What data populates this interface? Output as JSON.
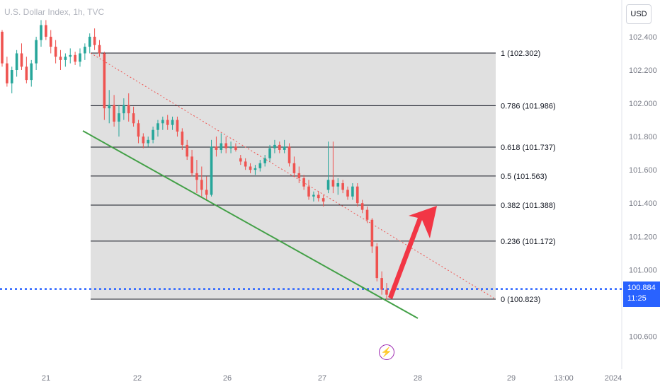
{
  "header": {
    "symbol": "U.S. Dollar Index, 1h, TVC",
    "currency_button": "USD"
  },
  "price_tag": {
    "price": "100.884",
    "countdown": "11:25",
    "color": "#2962ff"
  },
  "event_icon": {
    "icon": "lightning-bolt-icon",
    "glyph": "⚡",
    "color": "#9c27b0"
  },
  "colors": {
    "up": "#26a69a",
    "down": "#ef5350",
    "fib_fill": "#e0e0e0",
    "trendline": "#4caf50",
    "arrow": "#f23645"
  },
  "chart_data": {
    "type": "candlestick",
    "y_axis": {
      "range": [
        100.46,
        102.52
      ],
      "ticks": [
        "102.400",
        "102.200",
        "102.000",
        "101.800",
        "101.600",
        "101.400",
        "101.200",
        "101.000",
        "100.800",
        "100.600"
      ]
    },
    "x_axis": {
      "ticks": [
        "21",
        "22",
        "26",
        "27",
        "28",
        "29",
        "13:00",
        "2024"
      ]
    },
    "fibonacci": [
      {
        "ratio": "1",
        "price": 102.302,
        "label": "1 (102.302)"
      },
      {
        "ratio": "0.786",
        "price": 101.986,
        "label": "0.786 (101.986)"
      },
      {
        "ratio": "0.618",
        "price": 101.737,
        "label": "0.618 (101.737)"
      },
      {
        "ratio": "0.5",
        "price": 101.563,
        "label": "0.5 (101.563)"
      },
      {
        "ratio": "0.382",
        "price": 101.388,
        "label": "0.382 (101.388)"
      },
      {
        "ratio": "0.236",
        "price": 101.172,
        "label": "0.236 (101.172)"
      },
      {
        "ratio": "0",
        "price": 100.823,
        "label": "0 (100.823)"
      }
    ],
    "current_price": 100.884,
    "candles": [
      [
        102.43,
        102.44,
        102.22,
        102.24
      ],
      [
        102.24,
        102.28,
        102.1,
        102.12
      ],
      [
        102.12,
        102.22,
        102.06,
        102.2
      ],
      [
        102.2,
        102.32,
        102.16,
        102.3
      ],
      [
        102.3,
        102.36,
        102.2,
        102.22
      ],
      [
        102.22,
        102.28,
        102.12,
        102.14
      ],
      [
        102.14,
        102.26,
        102.1,
        102.24
      ],
      [
        102.24,
        102.4,
        102.2,
        102.38
      ],
      [
        102.38,
        102.5,
        102.34,
        102.47
      ],
      [
        102.47,
        102.5,
        102.38,
        102.4
      ],
      [
        102.4,
        102.44,
        102.3,
        102.34
      ],
      [
        102.34,
        102.38,
        102.24,
        102.28
      ],
      [
        102.28,
        102.32,
        102.2,
        102.26
      ],
      [
        102.26,
        102.3,
        102.22,
        102.28
      ],
      [
        102.28,
        102.33,
        102.24,
        102.29
      ],
      [
        102.29,
        102.31,
        102.23,
        102.25
      ],
      [
        102.25,
        102.33,
        102.22,
        102.3
      ],
      [
        102.3,
        102.36,
        102.26,
        102.34
      ],
      [
        102.34,
        102.42,
        102.3,
        102.4
      ],
      [
        102.4,
        102.45,
        102.32,
        102.35
      ],
      [
        102.35,
        102.38,
        102.28,
        102.3
      ],
      [
        102.3,
        102.31,
        101.9,
        101.97
      ],
      [
        101.97,
        102.08,
        101.88,
        101.99
      ],
      [
        101.99,
        102.05,
        101.86,
        101.89
      ],
      [
        101.89,
        101.99,
        101.8,
        101.94
      ],
      [
        101.94,
        102.03,
        101.9,
        101.99
      ],
      [
        101.99,
        102.06,
        101.89,
        101.94
      ],
      [
        101.94,
        101.98,
        101.86,
        101.88
      ],
      [
        101.88,
        101.9,
        101.76,
        101.8
      ],
      [
        101.8,
        101.82,
        101.73,
        101.76
      ],
      [
        101.76,
        101.8,
        101.74,
        101.78
      ],
      [
        101.78,
        101.86,
        101.76,
        101.84
      ],
      [
        101.84,
        101.9,
        101.8,
        101.88
      ],
      [
        101.88,
        101.92,
        101.84,
        101.9
      ],
      [
        101.9,
        101.93,
        101.84,
        101.87
      ],
      [
        101.87,
        101.92,
        101.84,
        101.9
      ],
      [
        101.9,
        101.92,
        101.8,
        101.83
      ],
      [
        101.83,
        101.85,
        101.72,
        101.75
      ],
      [
        101.75,
        101.78,
        101.66,
        101.68
      ],
      [
        101.68,
        101.72,
        101.56,
        101.58
      ],
      [
        101.58,
        101.66,
        101.46,
        101.54
      ],
      [
        101.54,
        101.62,
        101.44,
        101.48
      ],
      [
        101.48,
        101.56,
        101.42,
        101.45
      ],
      [
        101.45,
        101.78,
        101.44,
        101.74
      ],
      [
        101.74,
        101.8,
        101.68,
        101.72
      ],
      [
        101.72,
        101.82,
        101.7,
        101.76
      ],
      [
        101.76,
        101.8,
        101.7,
        101.73
      ],
      [
        101.73,
        101.77,
        101.7,
        101.74
      ],
      [
        101.74,
        101.76,
        101.71,
        101.72
      ],
      [
        101.67,
        101.69,
        101.63,
        101.65
      ],
      [
        101.65,
        101.67,
        101.6,
        101.62
      ],
      [
        101.62,
        101.64,
        101.58,
        101.6
      ],
      [
        101.6,
        101.63,
        101.57,
        101.61
      ],
      [
        101.61,
        101.66,
        101.59,
        101.64
      ],
      [
        101.64,
        101.69,
        101.62,
        101.67
      ],
      [
        101.67,
        101.75,
        101.65,
        101.73
      ],
      [
        101.73,
        101.78,
        101.7,
        101.75
      ],
      [
        101.75,
        101.77,
        101.7,
        101.72
      ],
      [
        101.72,
        101.78,
        101.7,
        101.74
      ],
      [
        101.74,
        101.76,
        101.62,
        101.64
      ],
      [
        101.64,
        101.68,
        101.56,
        101.58
      ],
      [
        101.58,
        101.62,
        101.52,
        101.55
      ],
      [
        101.55,
        101.57,
        101.48,
        101.5
      ],
      [
        101.5,
        101.54,
        101.42,
        101.44
      ],
      [
        101.44,
        101.47,
        101.41,
        101.45
      ],
      [
        101.45,
        101.47,
        101.41,
        101.43
      ],
      [
        101.43,
        101.45,
        101.38,
        101.41
      ],
      [
        101.48,
        101.77,
        101.46,
        101.54
      ],
      [
        101.54,
        101.77,
        101.46,
        101.5
      ],
      [
        101.5,
        101.55,
        101.45,
        101.52
      ],
      [
        101.52,
        101.54,
        101.46,
        101.48
      ],
      [
        101.48,
        101.5,
        101.42,
        101.44
      ],
      [
        101.44,
        101.52,
        101.42,
        101.5
      ],
      [
        101.5,
        101.52,
        101.38,
        101.4
      ],
      [
        101.4,
        101.42,
        101.34,
        101.36
      ],
      [
        101.36,
        101.38,
        101.28,
        101.3
      ],
      [
        101.3,
        101.31,
        101.1,
        101.14
      ],
      [
        101.14,
        101.16,
        100.93,
        100.95
      ],
      [
        100.95,
        100.99,
        100.85,
        100.88
      ],
      [
        100.88,
        100.92,
        100.82,
        100.85
      ]
    ]
  }
}
